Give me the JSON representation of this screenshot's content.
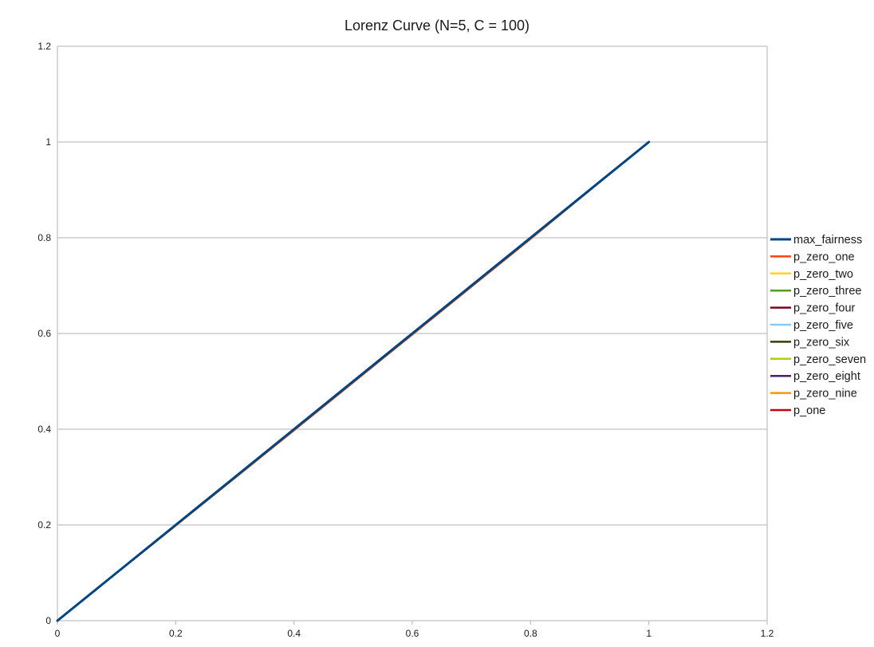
{
  "chart_data": {
    "type": "line",
    "title": "Lorenz Curve (N=5, C = 100)",
    "xlabel": "",
    "ylabel": "",
    "xlim": [
      0,
      1.2
    ],
    "ylim": [
      0,
      1.2
    ],
    "x_ticks": [
      0,
      0.2,
      0.4,
      0.6,
      0.8,
      1,
      1.2
    ],
    "y_ticks": [
      0,
      0.2,
      0.4,
      0.6,
      0.8,
      1,
      1.2
    ],
    "x_tick_labels": [
      "0",
      "0.2",
      "0.4",
      "0.6",
      "0.8",
      "1",
      "1.2"
    ],
    "y_tick_labels": [
      "0",
      "0.2",
      "0.4",
      "0.6",
      "0.8",
      "1",
      "1.2"
    ],
    "grid": "horizontal",
    "legend": "right",
    "series": [
      {
        "name": "max_fairness",
        "color": "#004586",
        "x": [
          0,
          0.2,
          0.4,
          0.6,
          0.8,
          1
        ],
        "y": [
          0,
          0.2,
          0.4,
          0.6,
          0.8,
          1
        ]
      },
      {
        "name": "p_zero_one",
        "color": "#ff420e",
        "x": [
          0,
          0.2,
          0.4,
          0.6,
          0.8,
          1
        ],
        "y": [
          0,
          0.198,
          0.397,
          0.597,
          0.797,
          1
        ]
      },
      {
        "name": "p_zero_two",
        "color": "#ffd320",
        "x": [
          0,
          0.2,
          0.4,
          0.6,
          0.8,
          1
        ],
        "y": [
          0,
          0.198,
          0.397,
          0.597,
          0.797,
          1
        ]
      },
      {
        "name": "p_zero_three",
        "color": "#579d1c",
        "x": [
          0,
          0.2,
          0.4,
          0.6,
          0.8,
          1
        ],
        "y": [
          0,
          0.198,
          0.397,
          0.597,
          0.797,
          1
        ]
      },
      {
        "name": "p_zero_four",
        "color": "#7e0021",
        "x": [
          0,
          0.2,
          0.4,
          0.6,
          0.8,
          1
        ],
        "y": [
          0,
          0.198,
          0.397,
          0.597,
          0.797,
          1
        ]
      },
      {
        "name": "p_zero_five",
        "color": "#83caff",
        "x": [
          0,
          0.2,
          0.4,
          0.6,
          0.8,
          1
        ],
        "y": [
          0,
          0.198,
          0.397,
          0.597,
          0.797,
          1
        ]
      },
      {
        "name": "p_zero_six",
        "color": "#314004",
        "x": [
          0,
          0.2,
          0.4,
          0.6,
          0.8,
          1
        ],
        "y": [
          0,
          0.198,
          0.397,
          0.597,
          0.797,
          1
        ]
      },
      {
        "name": "p_zero_seven",
        "color": "#aecf00",
        "x": [
          0,
          0.2,
          0.4,
          0.6,
          0.8,
          1
        ],
        "y": [
          0,
          0.198,
          0.397,
          0.597,
          0.797,
          1
        ]
      },
      {
        "name": "p_zero_eight",
        "color": "#4b1f6f",
        "x": [
          0,
          0.2,
          0.4,
          0.6,
          0.8,
          1
        ],
        "y": [
          0,
          0.198,
          0.397,
          0.597,
          0.797,
          1
        ]
      },
      {
        "name": "p_zero_nine",
        "color": "#ff950e",
        "x": [
          0,
          0.2,
          0.4,
          0.6,
          0.8,
          1
        ],
        "y": [
          0,
          0.198,
          0.397,
          0.597,
          0.797,
          1
        ]
      },
      {
        "name": "p_one",
        "color": "#c5000b",
        "x": [
          0,
          0.2,
          0.4,
          0.6,
          0.8,
          1
        ],
        "y": [
          0,
          0.198,
          0.397,
          0.597,
          0.797,
          1
        ]
      }
    ]
  }
}
